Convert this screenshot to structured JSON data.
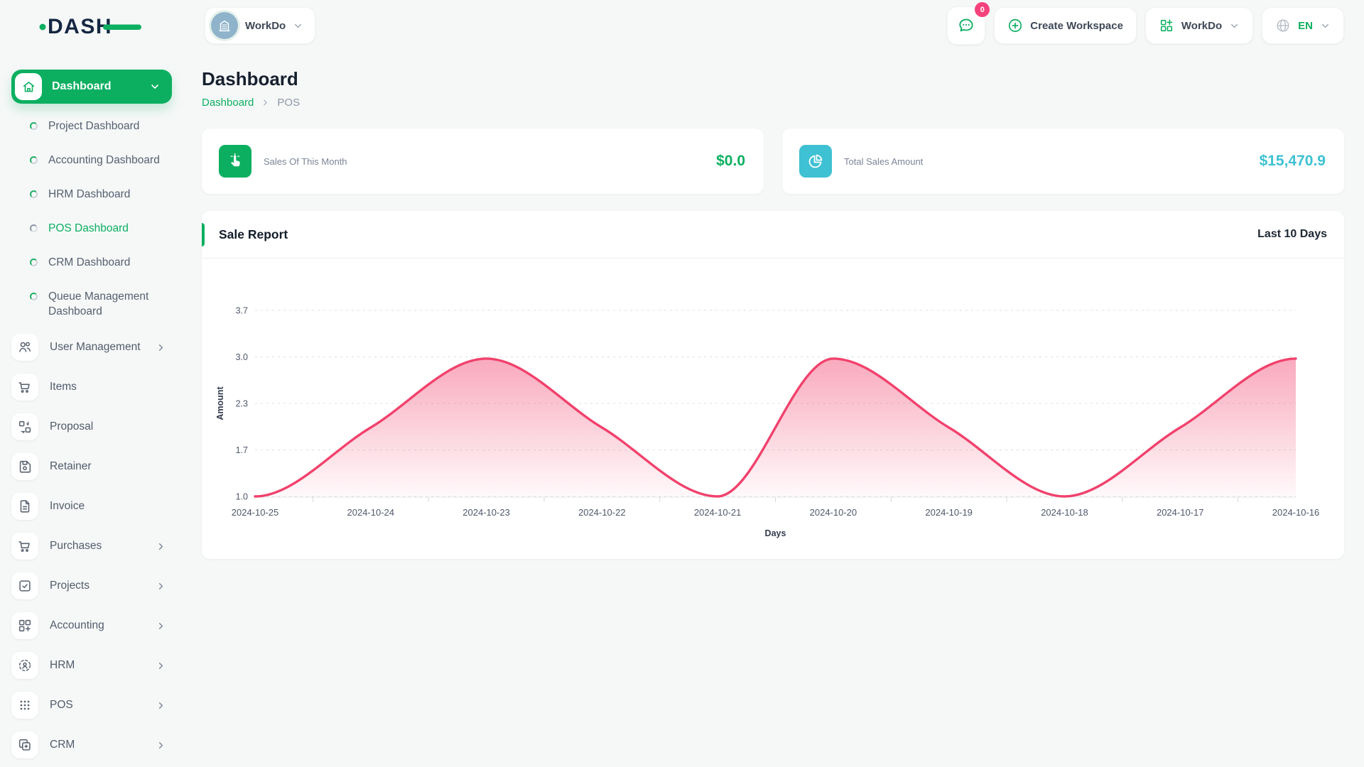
{
  "logo": {
    "text": "DASH"
  },
  "topbar": {
    "workspace_switcher": {
      "label": "WorkDo"
    },
    "messages": {
      "badge_count": "0"
    },
    "create_workspace_label": "Create Workspace",
    "workspace_menu_label": "WorkDo",
    "language": "EN"
  },
  "sidebar": {
    "dashboard_group": {
      "label": "Dashboard"
    },
    "sub_items": [
      {
        "label": "Project Dashboard"
      },
      {
        "label": "Accounting Dashboard"
      },
      {
        "label": "HRM Dashboard"
      },
      {
        "label": "POS Dashboard",
        "active": true
      },
      {
        "label": "CRM Dashboard"
      },
      {
        "label": "Queue Management Dashboard"
      }
    ],
    "items": [
      {
        "label": "User Management",
        "expandable": true
      },
      {
        "label": "Items",
        "expandable": false
      },
      {
        "label": "Proposal",
        "expandable": false
      },
      {
        "label": "Retainer",
        "expandable": false
      },
      {
        "label": "Invoice",
        "expandable": false
      },
      {
        "label": "Purchases",
        "expandable": true
      },
      {
        "label": "Projects",
        "expandable": true
      },
      {
        "label": "Accounting",
        "expandable": true
      },
      {
        "label": "HRM",
        "expandable": true
      },
      {
        "label": "POS",
        "expandable": true
      },
      {
        "label": "CRM",
        "expandable": true
      }
    ]
  },
  "page": {
    "title": "Dashboard",
    "breadcrumb": {
      "root": "Dashboard",
      "current": "POS"
    }
  },
  "stats": [
    {
      "label": "Sales Of This Month",
      "value": "$0.0",
      "accent": "#0caf60",
      "icon": "tap-icon"
    },
    {
      "label": "Total Sales Amount",
      "value": "$15,470.9",
      "accent": "#3ec1d3",
      "icon": "pie-chart-icon"
    }
  ],
  "sale_report": {
    "title": "Sale Report",
    "range_label": "Last 10 Days"
  },
  "chart_data": {
    "type": "area",
    "title": "Sale Report",
    "x": [
      "2024-10-25",
      "2024-10-24",
      "2024-10-23",
      "2024-10-22",
      "2024-10-21",
      "2024-10-20",
      "2024-10-19",
      "2024-10-18",
      "2024-10-17",
      "2024-10-16"
    ],
    "values": [
      1.0,
      2.0,
      3.0,
      2.0,
      1.0,
      3.0,
      2.0,
      1.0,
      2.0,
      3.0
    ],
    "xlabel": "Days",
    "ylabel": "Amount",
    "yticks": [
      3.7,
      3.0,
      2.3,
      1.7,
      1.0
    ],
    "ylim": [
      1.0,
      3.7
    ],
    "grid": true,
    "legend": false,
    "line_color": "#f1416c",
    "fill_color": "#f1416c"
  },
  "colors": {
    "green": "#0caf60",
    "pink": "#f1416c",
    "badge_pink": "#f4427c",
    "cyan": "#3ec1d3",
    "navy": "#152741",
    "background": "#f6f8f8"
  }
}
